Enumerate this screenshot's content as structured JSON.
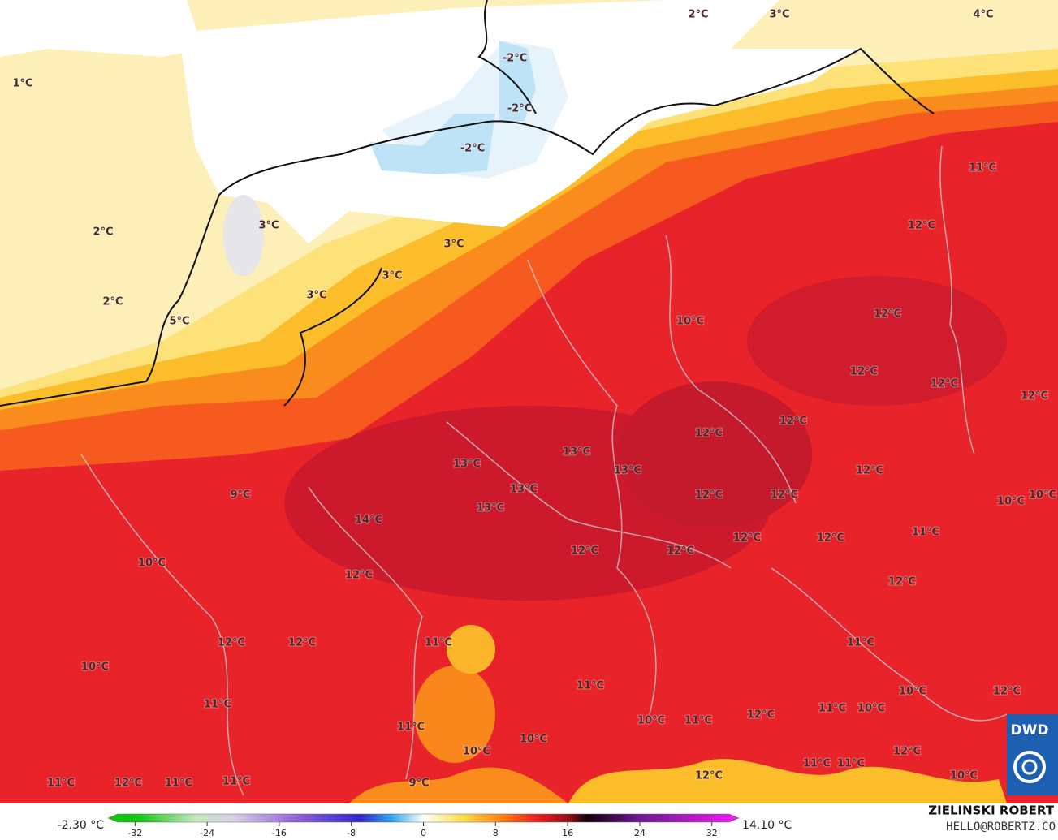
{
  "map": {
    "labels": [
      "1°C",
      "2°C",
      "2°C",
      "5°C",
      "3°C",
      "3°C",
      "3°C",
      "3°C",
      "-2°C",
      "-2°C",
      "-2°C",
      "2°C",
      "3°C",
      "4°C",
      "11°C",
      "12°C",
      "10°C",
      "12°C",
      "12°C",
      "12°C",
      "12°C",
      "12°C",
      "12°C",
      "13°C",
      "13°C",
      "13°C",
      "13°C",
      "13°C",
      "14°C",
      "9°C",
      "12°C",
      "12°C",
      "12°C",
      "10°C",
      "10°C",
      "12°C",
      "12°C",
      "11°C",
      "12°C",
      "12°C",
      "10°C",
      "12°C",
      "12°C",
      "12°C",
      "12°C",
      "11°C",
      "11°C",
      "10°C",
      "11°C",
      "10°C",
      "12°C",
      "11°C",
      "11°C",
      "10°C",
      "10°C",
      "11°C",
      "12°C",
      "11°C",
      "10°C",
      "10°C",
      "12°C",
      "12°C",
      "11°C",
      "11°C",
      "10°C",
      "11°C",
      "12°C",
      "11°C",
      "11°C",
      "9°C"
    ]
  },
  "legend": {
    "min_label": "-2.30 °C",
    "max_label": "14.10 °C",
    "range": [
      -35,
      35
    ],
    "ticks": [
      -32,
      -24,
      -16,
      -8,
      0,
      8,
      16,
      24,
      32
    ]
  },
  "logo": "DWD",
  "credit": {
    "name": "ZIELINSKI ROBERT",
    "email": "HELLO@ROBERTZ.CO"
  }
}
